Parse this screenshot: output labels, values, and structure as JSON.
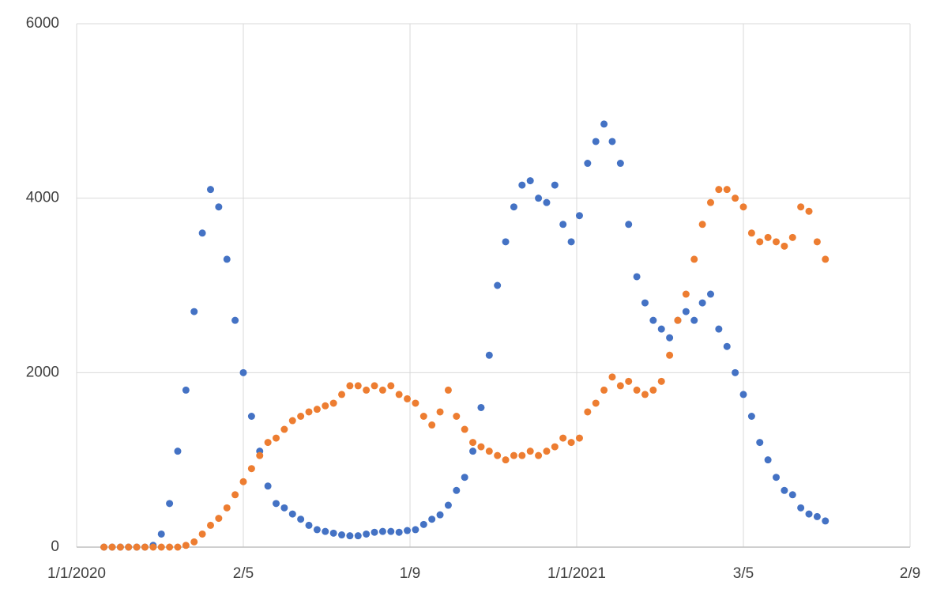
{
  "chart_data": {
    "type": "scatter",
    "x": [
      43851,
      43857,
      43863,
      43869,
      43875,
      43881,
      43887,
      43893,
      43899,
      43905,
      43911,
      43917,
      43923,
      43929,
      43935,
      43941,
      43947,
      43953,
      43959,
      43965,
      43971,
      43977,
      43983,
      43989,
      43995,
      44001,
      44007,
      44013,
      44019,
      44025,
      44031,
      44037,
      44043,
      44049,
      44055,
      44061,
      44067,
      44073,
      44079,
      44085,
      44091,
      44097,
      44103,
      44109,
      44115,
      44121,
      44127,
      44133,
      44139,
      44145,
      44151,
      44157,
      44163,
      44169,
      44175,
      44181,
      44187,
      44193,
      44199,
      44205,
      44211,
      44217,
      44223,
      44229,
      44235,
      44241,
      44247,
      44253,
      44259,
      44265,
      44271,
      44277,
      44283,
      44289,
      44295,
      44301,
      44307,
      44313,
      44319,
      44325,
      44331,
      44337,
      44343,
      44349,
      44355,
      44361,
      44367,
      44373,
      44379
    ],
    "series": [
      {
        "color": "#4472c4",
        "values": [
          0,
          0,
          0,
          0,
          0,
          0,
          20,
          150,
          500,
          1100,
          1800,
          2700,
          3600,
          4100,
          3900,
          3300,
          2600,
          2000,
          1500,
          1100,
          700,
          500,
          450,
          380,
          320,
          250,
          200,
          180,
          160,
          140,
          130,
          130,
          150,
          170,
          180,
          180,
          170,
          190,
          200,
          260,
          320,
          370,
          480,
          650,
          800,
          1100,
          1600,
          2200,
          3000,
          3500,
          3900,
          4150,
          4200,
          4000,
          3950,
          4150,
          3700,
          3500,
          3800,
          4400,
          4650,
          4850,
          4650,
          4400,
          3700,
          3100,
          2800,
          2600,
          2500,
          2400,
          2600,
          2700,
          2600,
          2800,
          2900,
          2500,
          2300,
          2000,
          1750,
          1500,
          1200,
          1000,
          800,
          650,
          600,
          450,
          380,
          350,
          300
        ]
      },
      {
        "color": "#ed7d31",
        "values": [
          0,
          0,
          0,
          0,
          0,
          0,
          0,
          0,
          0,
          0,
          20,
          60,
          150,
          250,
          330,
          450,
          600,
          750,
          900,
          1050,
          1200,
          1250,
          1350,
          1450,
          1500,
          1550,
          1580,
          1620,
          1650,
          1750,
          1850,
          1850,
          1800,
          1850,
          1800,
          1850,
          1750,
          1700,
          1650,
          1500,
          1400,
          1550,
          1800,
          1500,
          1350,
          1200,
          1150,
          1100,
          1050,
          1000,
          1050,
          1050,
          1100,
          1050,
          1100,
          1150,
          1250,
          1200,
          1250,
          1550,
          1650,
          1800,
          1950,
          1850,
          1900,
          1800,
          1750,
          1800,
          1900,
          2200,
          2600,
          2900,
          3300,
          3700,
          3950,
          4100,
          4100,
          4000,
          3900,
          3600,
          3500,
          3550,
          3500,
          3450,
          3550,
          3900,
          3850,
          3500,
          3300
        ]
      }
    ],
    "xlim": [
      43831,
      44441
    ],
    "xticks": [
      {
        "value": 43831,
        "label": "1/1/2020"
      },
      {
        "value": 43953,
        "label": "2/5"
      },
      {
        "value": 44075,
        "label": "1/9"
      },
      {
        "value": 44197,
        "label": "1/1/2021"
      },
      {
        "value": 44319,
        "label": "3/5"
      },
      {
        "value": 44441,
        "label": "2/9"
      }
    ],
    "ylim": [
      0,
      6000
    ],
    "yticks": [
      0,
      2000,
      4000,
      6000
    ],
    "grid": true
  }
}
